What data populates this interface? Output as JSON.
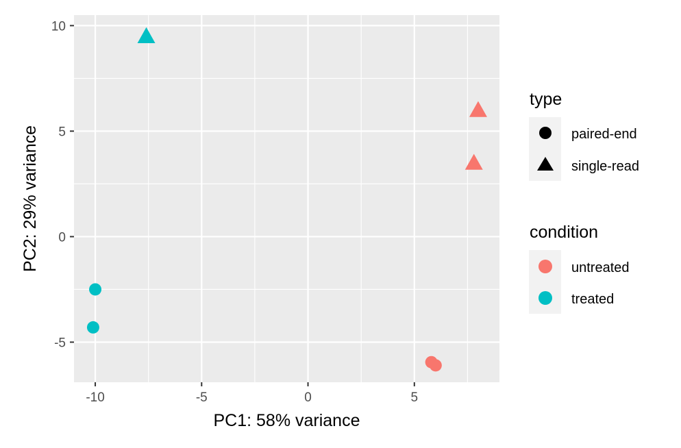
{
  "chart_data": {
    "type": "scatter",
    "xlabel": "PC1: 58% variance",
    "ylabel": "PC2: 29% variance",
    "xlim": [
      -11.0,
      9.0
    ],
    "ylim": [
      -6.9,
      10.5
    ],
    "x_ticks": [
      -10,
      -5,
      0,
      5
    ],
    "x_tick_labels": [
      "-10",
      "-5",
      "0",
      "5"
    ],
    "y_ticks": [
      -5,
      0,
      5,
      10
    ],
    "y_tick_labels": [
      "-5",
      "0",
      "5",
      "10"
    ],
    "x_minor_ticks": [
      -7.5,
      -2.5,
      2.5,
      7.5
    ],
    "y_minor_ticks": [
      -2.5,
      2.5,
      7.5
    ],
    "grid": true,
    "legend_placement": "right",
    "colors": {
      "untreated": "#F8766D",
      "treated": "#00BFC4",
      "panel": "#EBEBEB",
      "grid": "#FFFFFF"
    },
    "legends": [
      {
        "title": "type",
        "entries": [
          {
            "label": "paired-end",
            "shape": "circle"
          },
          {
            "label": "single-read",
            "shape": "triangle"
          }
        ]
      },
      {
        "title": "condition",
        "entries": [
          {
            "label": "untreated",
            "color": "#F8766D"
          },
          {
            "label": "treated",
            "color": "#00BFC4"
          }
        ]
      }
    ],
    "points": [
      {
        "x": -10.0,
        "y": -2.5,
        "type": "paired-end",
        "condition": "treated"
      },
      {
        "x": -10.1,
        "y": -4.3,
        "type": "paired-end",
        "condition": "treated"
      },
      {
        "x": -7.6,
        "y": 9.5,
        "type": "single-read",
        "condition": "treated"
      },
      {
        "x": 5.8,
        "y": -5.95,
        "type": "paired-end",
        "condition": "untreated"
      },
      {
        "x": 6.0,
        "y": -6.1,
        "type": "paired-end",
        "condition": "untreated"
      },
      {
        "x": 7.8,
        "y": 3.5,
        "type": "single-read",
        "condition": "untreated"
      },
      {
        "x": 8.0,
        "y": 6.0,
        "type": "single-read",
        "condition": "untreated"
      }
    ]
  }
}
